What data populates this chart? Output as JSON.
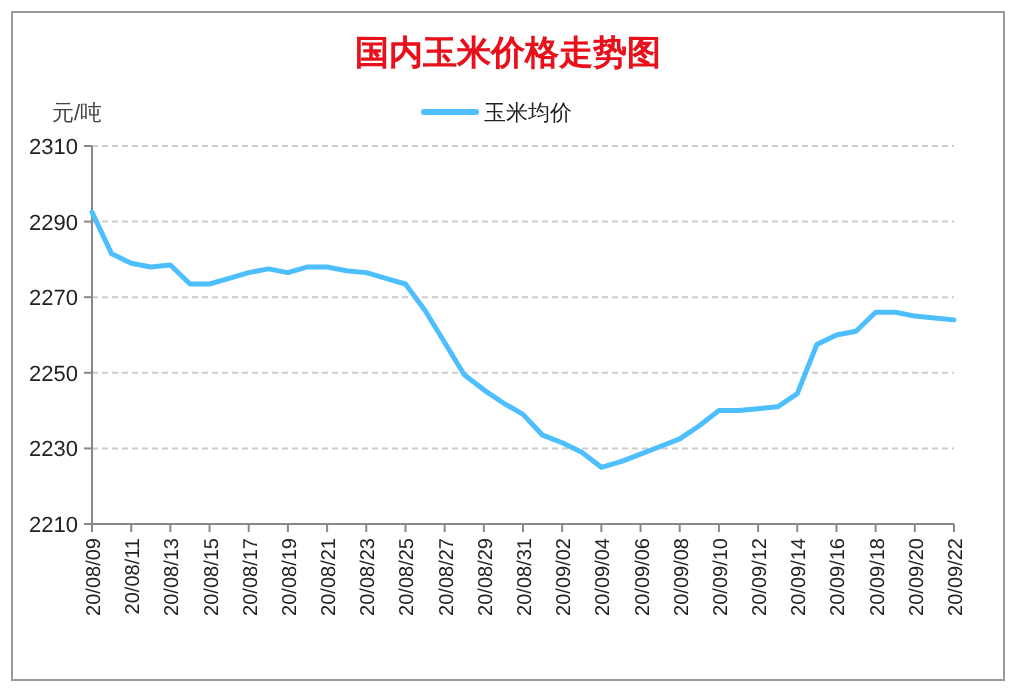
{
  "chart_data": {
    "type": "line",
    "title": "国内玉米价格走势图",
    "ylabel": "元/吨",
    "categories": [
      "20/08/09",
      null,
      "20/08/11",
      null,
      "20/08/13",
      null,
      "20/08/15",
      null,
      "20/08/17",
      null,
      "20/08/19",
      null,
      "20/08/21",
      null,
      "20/08/23",
      null,
      "20/08/25",
      null,
      "20/08/27",
      null,
      "20/08/29",
      null,
      "20/08/31",
      null,
      "20/09/02",
      null,
      "20/09/04",
      null,
      "20/09/06",
      null,
      "20/09/08",
      null,
      "20/09/10",
      null,
      "20/09/12",
      null,
      "20/09/14",
      null,
      "20/09/16",
      null,
      "20/09/18",
      null,
      "20/09/20",
      null,
      "20/09/22"
    ],
    "series": [
      {
        "name": "玉米均价",
        "color": "#4dbfff",
        "values": [
          2292.5,
          2281.5,
          2279,
          2278,
          2278.5,
          2273.5,
          2273.5,
          2275,
          2276.5,
          2277.5,
          2276.5,
          2278,
          2278,
          2277,
          2276.5,
          2275,
          2273.5,
          2266.5,
          2258,
          2249.5,
          2245.5,
          2242,
          2239,
          2233.5,
          2231.5,
          2229,
          2225,
          2226.5,
          2228.5,
          2230.5,
          2232.5,
          2236,
          2240,
          2240,
          2240.5,
          2241,
          2244.5,
          2257.5,
          2260,
          2261,
          2266,
          2266,
          2265,
          2264.5,
          2264
        ]
      }
    ],
    "ylim": [
      2210,
      2310
    ],
    "yticks": [
      2210,
      2230,
      2250,
      2270,
      2290,
      2310
    ],
    "grid": "y",
    "legend": "top"
  }
}
